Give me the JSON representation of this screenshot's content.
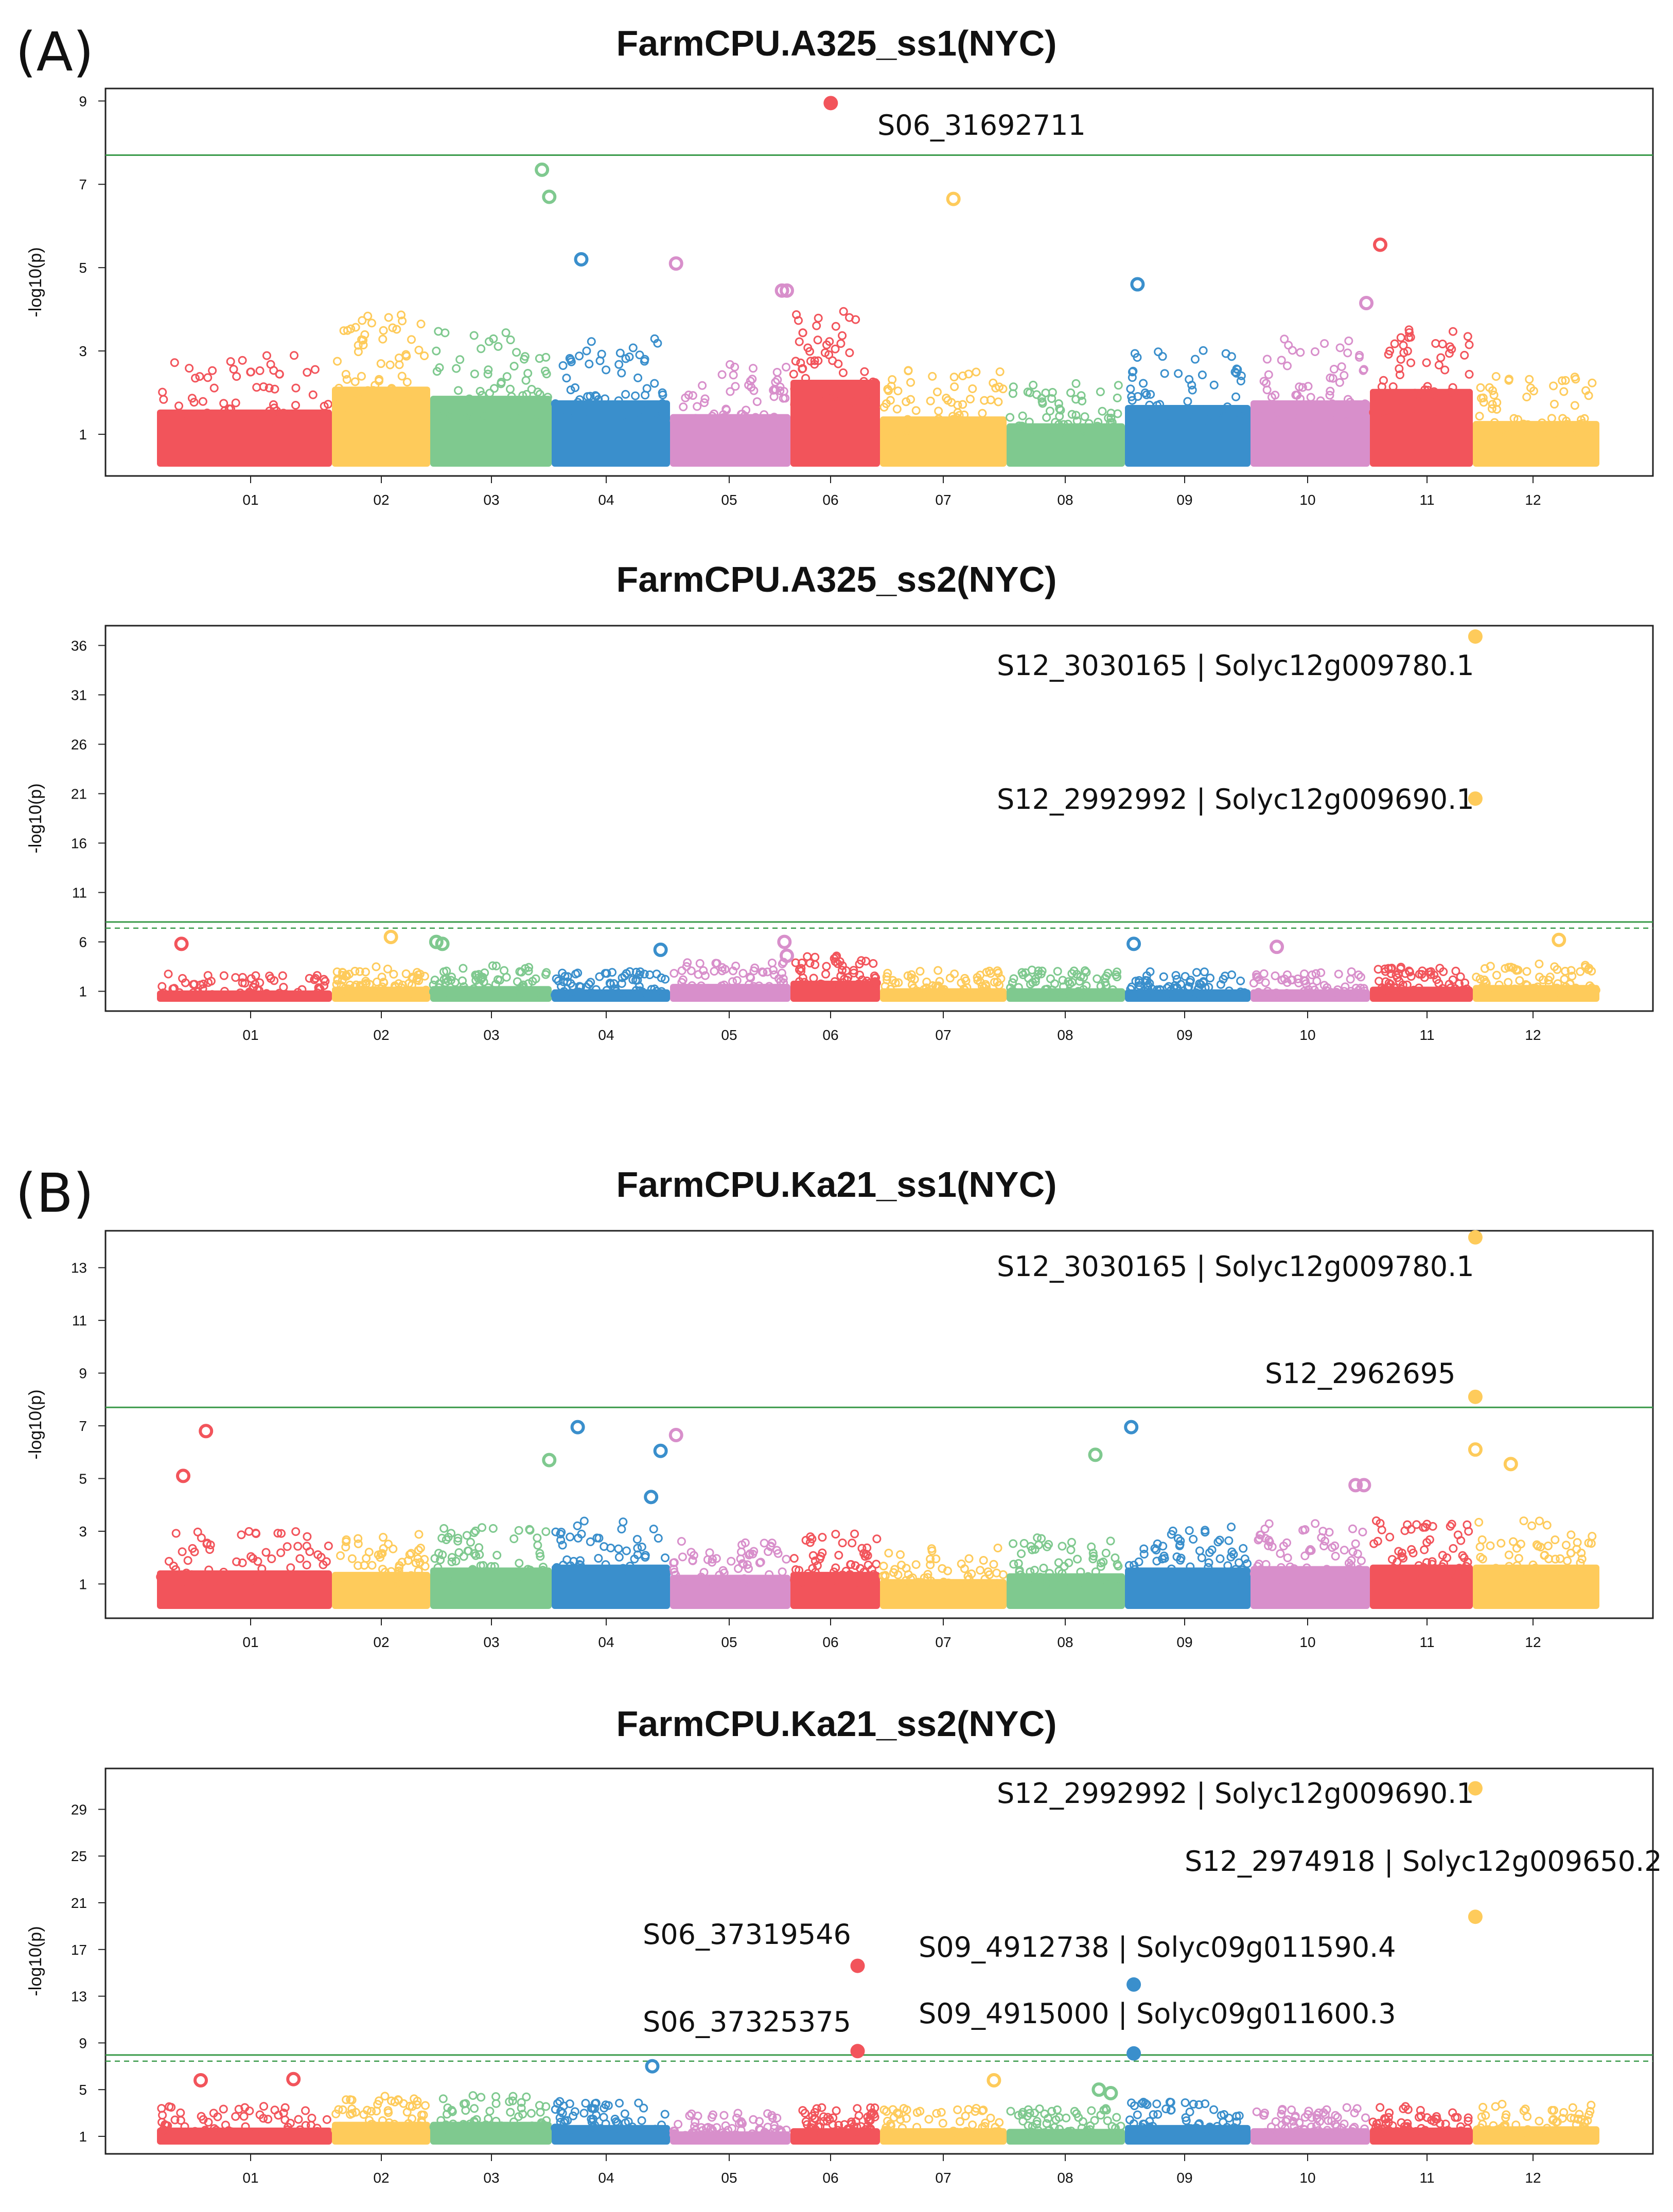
{
  "panel_letters": [
    "(A)",
    "(B)"
  ],
  "colors": {
    "chr01": "#f2545b",
    "chr02": "#fecb5b",
    "chr03": "#7fc98f",
    "chr04": "#3a8fcc",
    "chr05": "#d88fcb",
    "chr06": "#f2545b",
    "chr07": "#fecb5b",
    "chr08": "#7fc98f",
    "chr09": "#3a8fcc",
    "chr10": "#d88fcb",
    "chr11": "#f2545b",
    "chr12": "#fecb5b",
    "threshold": "#3a9a4a"
  },
  "chart_data": [
    {
      "type": "scatter",
      "title": "FarmCPU.A325_ss1(NYC)",
      "ylabel": "-log10(p)",
      "xlabel": "",
      "categories": [
        "01",
        "02",
        "03",
        "04",
        "05",
        "06",
        "07",
        "08",
        "09",
        "10",
        "11",
        "12"
      ],
      "ylim": [
        0,
        9.3
      ],
      "yticks": [
        1,
        3,
        5,
        7,
        9
      ],
      "threshold": 7.7,
      "threshold_dashed": false,
      "background_max": [
        2.9,
        3.9,
        3.5,
        3.3,
        2.7,
        4.2,
        2.6,
        2.3,
        3.1,
        3.3,
        3.8,
        2.4
      ],
      "points": [
        {
          "chr": "06",
          "pos": 0.45,
          "y": 8.95
        },
        {
          "chr": "03",
          "pos": 0.92,
          "y": 7.35
        },
        {
          "chr": "03",
          "pos": 0.98,
          "y": 6.7
        },
        {
          "chr": "07",
          "pos": 0.58,
          "y": 6.65
        },
        {
          "chr": "11",
          "pos": 0.1,
          "y": 5.55
        },
        {
          "chr": "04",
          "pos": 0.25,
          "y": 5.2
        },
        {
          "chr": "05",
          "pos": 0.05,
          "y": 5.1
        },
        {
          "chr": "09",
          "pos": 0.1,
          "y": 4.6
        },
        {
          "chr": "05",
          "pos": 0.93,
          "y": 4.45
        },
        {
          "chr": "05",
          "pos": 0.97,
          "y": 4.45
        },
        {
          "chr": "10",
          "pos": 0.97,
          "y": 4.15
        }
      ],
      "annotations": [
        {
          "label": "S06_31692711",
          "chr": "06",
          "pos": 0.45,
          "y": 8.95
        }
      ]
    },
    {
      "type": "scatter",
      "title": "FarmCPU.A325_ss2(NYC)",
      "ylabel": "-log10(p)",
      "xlabel": "",
      "categories": [
        "01",
        "02",
        "03",
        "04",
        "05",
        "06",
        "07",
        "08",
        "09",
        "10",
        "11",
        "12"
      ],
      "ylim": [
        -1,
        38
      ],
      "yticks": [
        1,
        6,
        11,
        16,
        21,
        26,
        31,
        36
      ],
      "threshold": 7.7,
      "threshold_dashed": true,
      "background_max": [
        2.8,
        3.5,
        3.6,
        3.0,
        4.0,
        4.6,
        3.2,
        3.2,
        3.0,
        3.0,
        3.5,
        3.8
      ],
      "points": [
        {
          "chr": "12",
          "pos": 0.02,
          "y": 36.9
        },
        {
          "chr": "12",
          "pos": 0.02,
          "y": 20.5
        },
        {
          "chr": "02",
          "pos": 0.6,
          "y": 6.5
        },
        {
          "chr": "03",
          "pos": 0.05,
          "y": 6.0
        },
        {
          "chr": "03",
          "pos": 0.1,
          "y": 5.8
        },
        {
          "chr": "01",
          "pos": 0.14,
          "y": 5.8
        },
        {
          "chr": "05",
          "pos": 0.95,
          "y": 6.0
        },
        {
          "chr": "05",
          "pos": 0.97,
          "y": 4.6
        },
        {
          "chr": "09",
          "pos": 0.07,
          "y": 5.8
        },
        {
          "chr": "10",
          "pos": 0.22,
          "y": 5.5
        },
        {
          "chr": "12",
          "pos": 0.68,
          "y": 6.2
        },
        {
          "chr": "04",
          "pos": 0.92,
          "y": 5.2
        }
      ],
      "annotations": [
        {
          "label": "S12_3030165 | Solyc12g009780.1",
          "chr": "12",
          "pos": 0.02,
          "y": 36.9
        },
        {
          "label": "S12_2992992 | Solyc12g009690.1",
          "chr": "12",
          "pos": 0.02,
          "y": 20.5
        }
      ]
    },
    {
      "type": "scatter",
      "title": "FarmCPU.Ka21_ss1(NYC)",
      "ylabel": "-log10(p)",
      "xlabel": "",
      "categories": [
        "01",
        "02",
        "03",
        "04",
        "05",
        "06",
        "07",
        "08",
        "09",
        "10",
        "11",
        "12"
      ],
      "ylim": [
        -0.3,
        14.4
      ],
      "yticks": [
        1,
        3,
        5,
        7,
        9,
        11,
        13
      ],
      "threshold": 7.7,
      "threshold_dashed": false,
      "background_max": [
        3.0,
        2.9,
        3.2,
        3.4,
        2.7,
        2.9,
        2.4,
        2.8,
        3.2,
        3.3,
        3.4,
        3.4
      ],
      "points": [
        {
          "chr": "12",
          "pos": 0.02,
          "y": 14.15
        },
        {
          "chr": "12",
          "pos": 0.02,
          "y": 8.1
        },
        {
          "chr": "12",
          "pos": 0.02,
          "y": 6.1
        },
        {
          "chr": "12",
          "pos": 0.3,
          "y": 5.55
        },
        {
          "chr": "01",
          "pos": 0.28,
          "y": 6.8
        },
        {
          "chr": "01",
          "pos": 0.15,
          "y": 5.1
        },
        {
          "chr": "04",
          "pos": 0.22,
          "y": 6.95
        },
        {
          "chr": "09",
          "pos": 0.05,
          "y": 6.95
        },
        {
          "chr": "05",
          "pos": 0.05,
          "y": 6.65
        },
        {
          "chr": "04",
          "pos": 0.92,
          "y": 6.05
        },
        {
          "chr": "08",
          "pos": 0.75,
          "y": 5.9
        },
        {
          "chr": "03",
          "pos": 0.98,
          "y": 5.7
        },
        {
          "chr": "04",
          "pos": 0.84,
          "y": 4.3
        },
        {
          "chr": "10",
          "pos": 0.88,
          "y": 4.75
        },
        {
          "chr": "10",
          "pos": 0.95,
          "y": 4.75
        }
      ],
      "annotations": [
        {
          "label": "S12_3030165 | Solyc12g009780.1",
          "chr": "12",
          "pos": 0.02,
          "y": 14.15
        },
        {
          "label": "S12_2962695",
          "chr": "12",
          "pos": 0.02,
          "y": 8.1
        }
      ]
    },
    {
      "type": "scatter",
      "title": "FarmCPU.Ka21_ss2(NYC)",
      "ylabel": "-log10(p)",
      "xlabel": "",
      "categories": [
        "01",
        "02",
        "03",
        "04",
        "05",
        "06",
        "07",
        "08",
        "09",
        "10",
        "11",
        "12"
      ],
      "ylim": [
        -0.5,
        32.5
      ],
      "yticks": [
        1,
        5,
        9,
        13,
        17,
        21,
        25,
        29
      ],
      "threshold": 7.7,
      "threshold_dashed": true,
      "background_max": [
        3.6,
        4.5,
        4.5,
        4.0,
        3.0,
        3.5,
        3.5,
        3.4,
        4.0,
        3.5,
        3.6,
        3.8
      ],
      "points": [
        {
          "chr": "12",
          "pos": 0.02,
          "y": 30.8
        },
        {
          "chr": "12",
          "pos": 0.02,
          "y": 19.8
        },
        {
          "chr": "06",
          "pos": 0.75,
          "y": 15.6
        },
        {
          "chr": "06",
          "pos": 0.75,
          "y": 8.3
        },
        {
          "chr": "09",
          "pos": 0.07,
          "y": 14.0
        },
        {
          "chr": "09",
          "pos": 0.07,
          "y": 8.1
        },
        {
          "chr": "04",
          "pos": 0.85,
          "y": 7.0
        },
        {
          "chr": "01",
          "pos": 0.25,
          "y": 5.8
        },
        {
          "chr": "01",
          "pos": 0.78,
          "y": 5.9
        },
        {
          "chr": "07",
          "pos": 0.9,
          "y": 5.8
        },
        {
          "chr": "08",
          "pos": 0.78,
          "y": 5.0
        },
        {
          "chr": "08",
          "pos": 0.88,
          "y": 4.7
        }
      ],
      "annotations": [
        {
          "label": "S12_2992992 | Solyc12g009690.1",
          "chr": "12",
          "pos": 0.02,
          "y": 30.8
        },
        {
          "label": "S12_2974918 | Solyc12g009650.2",
          "chr": "12",
          "pos": 0.02,
          "y": 19.8
        },
        {
          "label": "S06_37319546",
          "chr": "06",
          "pos": 0.75,
          "y": 15.6
        },
        {
          "label": "S09_4912738 | Solyc09g011590.4",
          "chr": "09",
          "pos": 0.07,
          "y": 14.0
        },
        {
          "label": "S06_37325375",
          "chr": "06",
          "pos": 0.75,
          "y": 8.3
        },
        {
          "label": "S09_4915000 | Solyc09g011600.3",
          "chr": "09",
          "pos": 0.07,
          "y": 8.1
        }
      ]
    }
  ]
}
